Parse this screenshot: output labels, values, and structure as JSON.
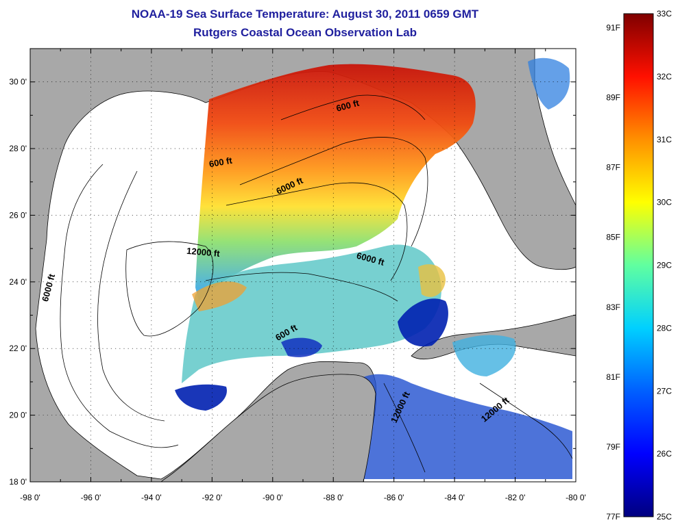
{
  "header": {
    "title": "NOAA-19 Sea Surface Temperature:  August 30, 2011 0659 GMT",
    "subtitle": "Rutgers Coastal Ocean Observation Lab"
  },
  "axes": {
    "x_ticks": [
      "-98 0'",
      "-96 0'",
      "-94 0'",
      "-92 0'",
      "-90 0'",
      "-88 0'",
      "-86 0'",
      "-84 0'",
      "-82 0'",
      "-80 0'"
    ],
    "y_ticks": [
      "18 0'",
      "20 0'",
      "22 0'",
      "24 0'",
      "26 0'",
      "28 0'",
      "30 0'"
    ],
    "lon_range": [
      -98,
      -80
    ],
    "lat_range": [
      18,
      31
    ]
  },
  "contours": [
    {
      "label": "600 ft",
      "lon": -91.7,
      "lat": 27.5,
      "angle": -10
    },
    {
      "label": "600 ft",
      "lon": -87.5,
      "lat": 29.2,
      "angle": -15
    },
    {
      "label": "6000 ft",
      "lon": -89.4,
      "lat": 26.8,
      "angle": -25
    },
    {
      "label": "6000 ft",
      "lon": -97.3,
      "lat": 23.8,
      "angle": -75
    },
    {
      "label": "12000 ft",
      "lon": -92.3,
      "lat": 24.8,
      "angle": 5
    },
    {
      "label": "6000 ft",
      "lon": -86.8,
      "lat": 24.6,
      "angle": 15
    },
    {
      "label": "600 ft",
      "lon": -89.5,
      "lat": 22.4,
      "angle": -30
    },
    {
      "label": "12000 ft",
      "lon": -85.7,
      "lat": 20.2,
      "angle": -65
    },
    {
      "label": "12000 ft",
      "lon": -82.6,
      "lat": 20.1,
      "angle": -40
    }
  ],
  "colorbar": {
    "celsius_labels": [
      "33C",
      "32C",
      "31C",
      "30C",
      "29C",
      "28C",
      "27C",
      "26C",
      "25C"
    ],
    "fahrenheit_labels": [
      "91F",
      "89F",
      "87F",
      "85F",
      "83F",
      "81F",
      "79F",
      "77F"
    ],
    "celsius_range": [
      25,
      33
    ],
    "colors": [
      "#00007f",
      "#0000ff",
      "#0080ff",
      "#00ffff",
      "#80ff80",
      "#ffff00",
      "#ff8000",
      "#ff0000",
      "#7f0000"
    ]
  },
  "legend_colors": {
    "land": "#a8a8a8",
    "ocean_nodata": "#ffffff",
    "title": "#1f1f9e"
  }
}
